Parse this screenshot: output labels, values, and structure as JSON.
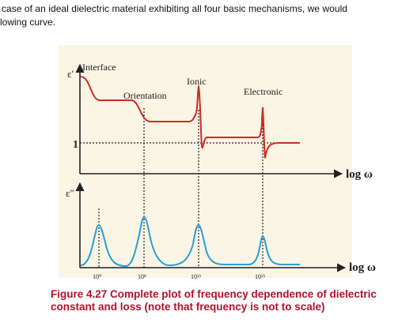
{
  "text": {
    "line1": "case of an ideal dielectric material exhibiting all four basic mechanisms, we would",
    "line2": "lowing curve."
  },
  "figure": {
    "top_axis_label": "ε′",
    "bottom_axis_label": "ε″",
    "one_label": "1",
    "log_label_top": "log ω",
    "log_label_bottom": "log ω",
    "mechanisms": {
      "interface": "Interface",
      "orientation": "Orientation",
      "ionic": "Ionic",
      "electronic": "Electronic"
    },
    "ticks": [
      "10⁰",
      "10⁸",
      "10¹³",
      "10¹⁵"
    ],
    "colors": {
      "background": "#fbf5e6",
      "dielectric_constant_curve": "#d12a22",
      "loss_curve": "#2a9ed2",
      "axis": "#222222"
    }
  },
  "caption": {
    "text": "Figure 4.27 Complete plot of frequency dependence of dielectric constant and loss (note that frequency is not to scale)"
  }
}
